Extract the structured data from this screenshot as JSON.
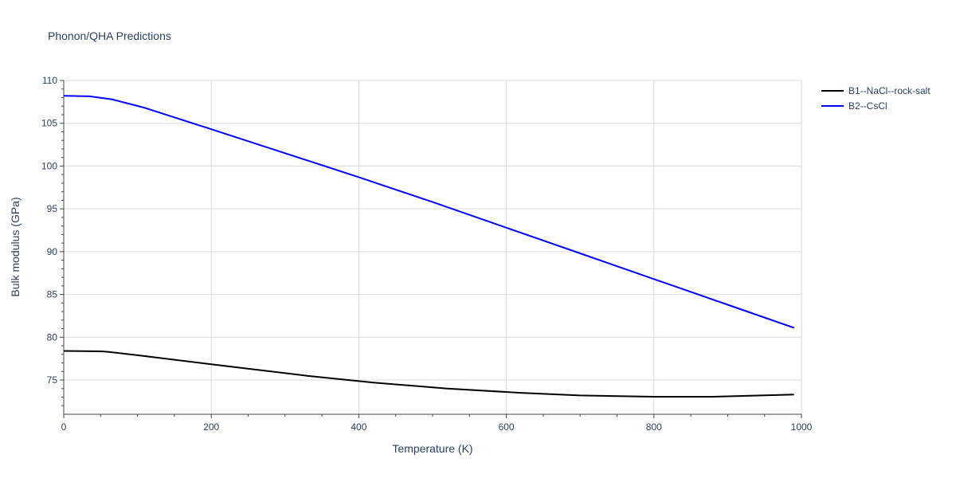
{
  "chart_data": {
    "type": "line",
    "title": "Phonon/QHA Predictions",
    "xlabel": "Temperature (K)",
    "ylabel": "Bulk modulus (GPa)",
    "xlim": [
      0,
      1000
    ],
    "ylim": [
      71,
      110
    ],
    "xticks": [
      0,
      200,
      400,
      600,
      800,
      1000
    ],
    "yticks": [
      75,
      80,
      85,
      90,
      95,
      100,
      105,
      110
    ],
    "grid": true,
    "legend_position": "top-right, outside plot",
    "series": [
      {
        "name": "B1--NaCl--rock-salt",
        "color": "#000000",
        "x": [
          0,
          50,
          60,
          100,
          200,
          330,
          420,
          520,
          620,
          700,
          800,
          880,
          990
        ],
        "y": [
          78.4,
          78.35,
          78.3,
          77.9,
          76.85,
          75.5,
          74.7,
          74.0,
          73.5,
          73.2,
          73.05,
          73.05,
          73.3
        ]
      },
      {
        "name": "B2--CsCl",
        "color": "#0000ff",
        "x": [
          0,
          35,
          65,
          110,
          200,
          300,
          400,
          500,
          600,
          700,
          800,
          900,
          990
        ],
        "y": [
          108.2,
          108.15,
          107.8,
          106.8,
          104.3,
          101.5,
          98.7,
          95.8,
          92.8,
          89.8,
          86.8,
          83.8,
          81.1
        ]
      }
    ]
  }
}
